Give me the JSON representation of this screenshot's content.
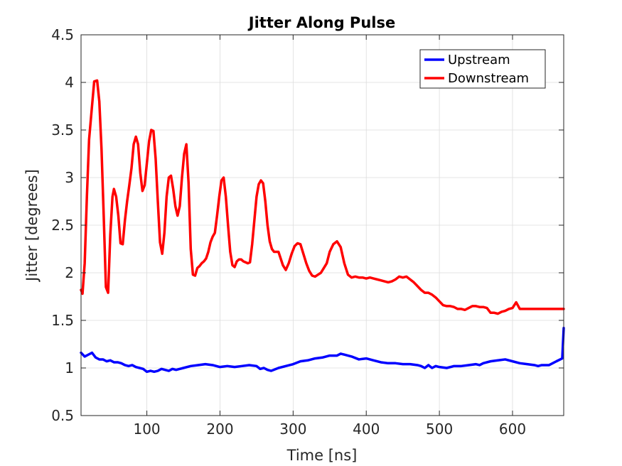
{
  "chart_data": {
    "type": "line",
    "title": "Jitter Along Pulse",
    "xlabel": "Time [ns]",
    "ylabel": "Jitter [degrees]",
    "xlim": [
      10,
      670
    ],
    "ylim": [
      0.5,
      4.5
    ],
    "xticks": [
      100,
      200,
      300,
      400,
      500,
      600
    ],
    "yticks": [
      0.5,
      1,
      1.5,
      2,
      2.5,
      3,
      3.5,
      4,
      4.5
    ],
    "grid": true,
    "legend_position": "top-right",
    "series": [
      {
        "name": "Upstream",
        "color": "#0000ff",
        "x": [
          10,
          15,
          20,
          25,
          30,
          35,
          40,
          45,
          50,
          55,
          60,
          65,
          70,
          75,
          80,
          85,
          90,
          95,
          100,
          105,
          110,
          115,
          120,
          125,
          130,
          135,
          140,
          145,
          150,
          160,
          170,
          180,
          190,
          200,
          210,
          220,
          230,
          240,
          250,
          255,
          260,
          265,
          270,
          280,
          290,
          300,
          310,
          320,
          330,
          340,
          350,
          360,
          365,
          370,
          380,
          390,
          400,
          410,
          420,
          430,
          440,
          450,
          460,
          470,
          475,
          480,
          485,
          490,
          495,
          500,
          510,
          520,
          530,
          540,
          550,
          555,
          560,
          570,
          580,
          590,
          600,
          610,
          620,
          630,
          635,
          640,
          650,
          660,
          668,
          670
        ],
        "y": [
          1.16,
          1.12,
          1.14,
          1.16,
          1.11,
          1.09,
          1.09,
          1.07,
          1.08,
          1.06,
          1.06,
          1.05,
          1.03,
          1.02,
          1.03,
          1.01,
          1.0,
          0.99,
          0.96,
          0.97,
          0.96,
          0.97,
          0.99,
          0.98,
          0.97,
          0.99,
          0.98,
          0.99,
          1.0,
          1.02,
          1.03,
          1.04,
          1.03,
          1.01,
          1.02,
          1.01,
          1.02,
          1.03,
          1.02,
          0.99,
          1.0,
          0.98,
          0.97,
          1.0,
          1.02,
          1.04,
          1.07,
          1.08,
          1.1,
          1.11,
          1.13,
          1.13,
          1.15,
          1.14,
          1.12,
          1.09,
          1.1,
          1.08,
          1.06,
          1.05,
          1.05,
          1.04,
          1.04,
          1.03,
          1.02,
          1.0,
          1.03,
          1.0,
          1.02,
          1.01,
          1.0,
          1.02,
          1.02,
          1.03,
          1.04,
          1.03,
          1.05,
          1.07,
          1.08,
          1.09,
          1.07,
          1.05,
          1.04,
          1.03,
          1.02,
          1.03,
          1.03,
          1.07,
          1.1,
          1.42
        ]
      },
      {
        "name": "Downstream",
        "color": "#ff0000",
        "x": [
          10,
          12,
          15,
          18,
          21,
          25,
          28,
          32,
          35,
          38,
          41,
          44,
          47,
          50,
          53,
          55,
          58,
          61,
          64,
          67,
          70,
          73,
          76,
          79,
          82,
          85,
          88,
          91,
          94,
          97,
          100,
          103,
          106,
          109,
          112,
          115,
          118,
          121,
          124,
          127,
          130,
          133,
          136,
          139,
          142,
          145,
          148,
          151,
          154,
          157,
          160,
          163,
          166,
          169,
          172,
          175,
          178,
          181,
          184,
          187,
          190,
          193,
          196,
          199,
          202,
          205,
          208,
          211,
          214,
          217,
          220,
          223,
          226,
          229,
          232,
          235,
          238,
          241,
          244,
          247,
          250,
          253,
          256,
          259,
          262,
          265,
          268,
          271,
          274,
          277,
          280,
          283,
          286,
          290,
          294,
          298,
          302,
          306,
          310,
          314,
          318,
          322,
          326,
          330,
          334,
          338,
          342,
          346,
          350,
          355,
          360,
          365,
          370,
          375,
          380,
          385,
          390,
          395,
          400,
          405,
          410,
          415,
          420,
          425,
          430,
          435,
          440,
          445,
          450,
          455,
          460,
          465,
          470,
          475,
          480,
          485,
          490,
          495,
          500,
          505,
          510,
          515,
          520,
          525,
          530,
          535,
          540,
          545,
          550,
          555,
          560,
          565,
          570,
          575,
          580,
          585,
          590,
          595,
          600,
          605,
          610,
          615,
          620,
          625,
          630,
          635,
          640,
          645,
          650,
          655,
          660,
          665,
          668,
          670
        ],
        "y": [
          1.82,
          1.78,
          2.1,
          2.8,
          3.4,
          3.75,
          4.01,
          4.02,
          3.8,
          3.3,
          2.6,
          1.85,
          1.79,
          2.4,
          2.8,
          2.88,
          2.8,
          2.6,
          2.31,
          2.3,
          2.55,
          2.75,
          2.92,
          3.1,
          3.35,
          3.43,
          3.35,
          3.05,
          2.86,
          2.92,
          3.15,
          3.38,
          3.5,
          3.49,
          3.2,
          2.75,
          2.32,
          2.2,
          2.42,
          2.8,
          3.0,
          3.02,
          2.88,
          2.7,
          2.6,
          2.7,
          3.0,
          3.25,
          3.35,
          2.95,
          2.25,
          1.98,
          1.97,
          2.05,
          2.07,
          2.1,
          2.12,
          2.15,
          2.22,
          2.32,
          2.38,
          2.42,
          2.6,
          2.8,
          2.97,
          3.0,
          2.8,
          2.5,
          2.22,
          2.08,
          2.06,
          2.12,
          2.14,
          2.14,
          2.12,
          2.11,
          2.1,
          2.11,
          2.3,
          2.55,
          2.8,
          2.93,
          2.97,
          2.94,
          2.75,
          2.5,
          2.33,
          2.25,
          2.22,
          2.22,
          2.22,
          2.15,
          2.08,
          2.03,
          2.1,
          2.2,
          2.28,
          2.31,
          2.3,
          2.2,
          2.1,
          2.02,
          1.97,
          1.96,
          1.98,
          2.0,
          2.05,
          2.1,
          2.22,
          2.3,
          2.33,
          2.27,
          2.1,
          1.98,
          1.95,
          1.96,
          1.95,
          1.95,
          1.94,
          1.95,
          1.94,
          1.93,
          1.92,
          1.91,
          1.9,
          1.91,
          1.93,
          1.96,
          1.95,
          1.96,
          1.93,
          1.9,
          1.86,
          1.82,
          1.79,
          1.79,
          1.77,
          1.74,
          1.7,
          1.66,
          1.65,
          1.65,
          1.64,
          1.62,
          1.62,
          1.61,
          1.63,
          1.65,
          1.65,
          1.64,
          1.64,
          1.63,
          1.58,
          1.58,
          1.57,
          1.59,
          1.6,
          1.62,
          1.63,
          1.69,
          1.62,
          1.62,
          1.62,
          1.62,
          1.62,
          1.62,
          1.62,
          1.62,
          1.62,
          1.62,
          1.62,
          1.62,
          1.62,
          1.62
        ]
      }
    ]
  }
}
